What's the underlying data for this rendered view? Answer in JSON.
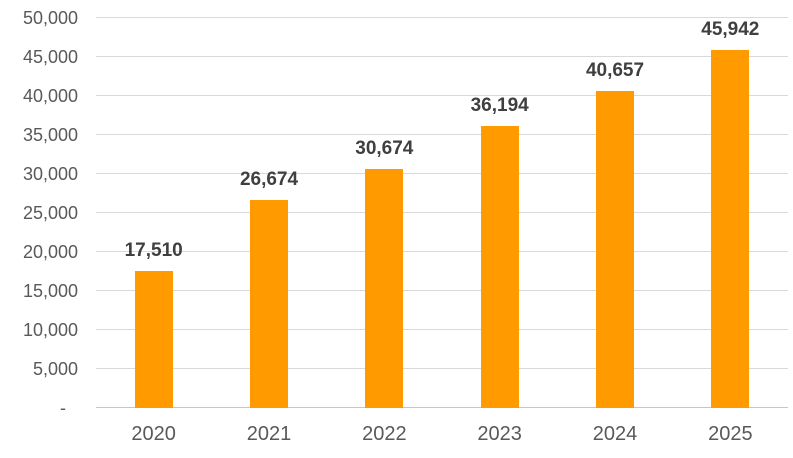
{
  "chart_data": {
    "type": "bar",
    "title": "",
    "xlabel": "",
    "ylabel": "",
    "categories": [
      "2020",
      "2021",
      "2022",
      "2023",
      "2024",
      "2025"
    ],
    "values": [
      17510,
      26674,
      30674,
      36194,
      40657,
      45942
    ],
    "value_labels": [
      "17,510",
      "26,674",
      "30,674",
      "36,194",
      "40,657",
      "45,942"
    ],
    "ylim": [
      0,
      50000
    ],
    "ytick_interval": 5000,
    "ytick_labels": [
      "-",
      "5,000",
      "10,000",
      "15,000",
      "20,000",
      "25,000",
      "30,000",
      "35,000",
      "40,000",
      "45,000",
      "50,000"
    ],
    "grid": true,
    "legend": false,
    "colors": {
      "bar": "#FF9A00",
      "gridline": "#D9D9D9",
      "axis_line": "#C6C6C6",
      "tick_label": "#595959",
      "value_label": "#3F3F3F",
      "background": "#FFFFFF"
    }
  }
}
